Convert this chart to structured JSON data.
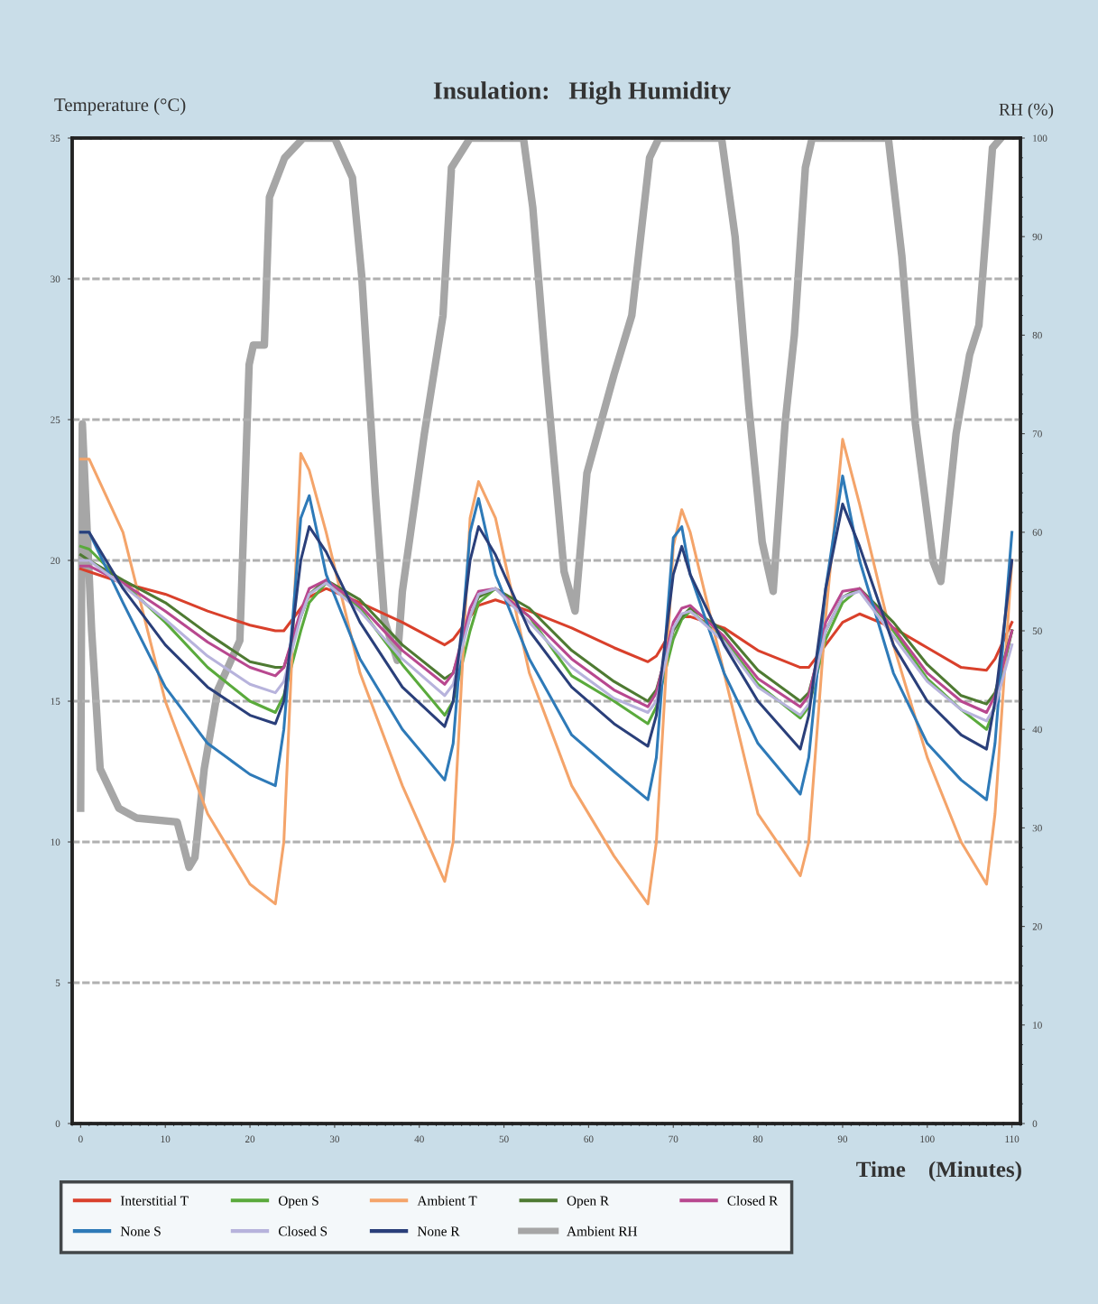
{
  "chart_data": {
    "type": "line",
    "title": "Insulation:   High Humidity",
    "xlabel": "Time    (Minutes)",
    "ylabel": "Temperature (°C)",
    "y2label": "RH (%)",
    "x": [
      0,
      1,
      5,
      10,
      15,
      20,
      23,
      24,
      26,
      27,
      29,
      33,
      38,
      43,
      44,
      46,
      47,
      49,
      53,
      58,
      63,
      67,
      68,
      70,
      71,
      72,
      76,
      80,
      85,
      86,
      88,
      90,
      92,
      96,
      100,
      104,
      107,
      108,
      110
    ],
    "series": [
      {
        "name": "Interstitial T",
        "color": "#d9402b",
        "values": [
          19.7,
          19.6,
          19.2,
          18.8,
          18.2,
          17.7,
          17.5,
          17.5,
          18.3,
          18.7,
          19,
          18.5,
          17.8,
          17.0,
          17.2,
          18,
          18.4,
          18.6,
          18.2,
          17.6,
          16.9,
          16.4,
          16.6,
          17.6,
          18,
          18,
          17.6,
          16.8,
          16.2,
          16.2,
          17,
          17.8,
          18.1,
          17.6,
          16.9,
          16.2,
          16.1,
          16.5,
          17.8
        ]
      },
      {
        "name": "Open S",
        "color": "#5aaa3c",
        "values": [
          20.5,
          20.4,
          19.2,
          17.8,
          16.2,
          15,
          14.6,
          15.2,
          17.5,
          18.5,
          19.2,
          18.3,
          16.3,
          14.5,
          15,
          17.5,
          18.5,
          19,
          18,
          15.9,
          15,
          14.2,
          14.8,
          17.2,
          17.9,
          18.2,
          17.2,
          15.6,
          14.4,
          14.8,
          17.2,
          18.5,
          19,
          17.5,
          15.8,
          14.7,
          14.0,
          14.8,
          17.5
        ]
      },
      {
        "name": "Ambient T",
        "color": "#f4a46a",
        "values": [
          23.6,
          23.6,
          21,
          15,
          11,
          8.5,
          7.8,
          10,
          23.8,
          23.2,
          21,
          16,
          12,
          8.6,
          10,
          21.5,
          22.8,
          21.5,
          16,
          12,
          9.5,
          7.8,
          10,
          20.5,
          21.8,
          21,
          16,
          11,
          8.8,
          10,
          18,
          24.3,
          22,
          17,
          13,
          10,
          8.5,
          11,
          20
        ]
      },
      {
        "name": "Open R",
        "color": "#4e7a32",
        "values": [
          20.2,
          20,
          19.3,
          18.5,
          17.4,
          16.4,
          16.2,
          16.2,
          18,
          18.8,
          19.3,
          18.6,
          17,
          15.8,
          16,
          18,
          18.7,
          19,
          18.3,
          16.8,
          15.7,
          15.0,
          15.4,
          17.5,
          18,
          18.3,
          17.5,
          16.1,
          15,
          15.3,
          17.5,
          18.7,
          19,
          17.8,
          16.3,
          15.2,
          14.9,
          15.3,
          17.5
        ]
      },
      {
        "name": "Closed R",
        "color": "#b8488f",
        "values": [
          19.8,
          19.8,
          19.2,
          18.2,
          17.1,
          16.2,
          15.9,
          16.2,
          18.2,
          19,
          19.3,
          18.4,
          16.8,
          15.6,
          16,
          18.3,
          18.9,
          19,
          18,
          16.5,
          15.4,
          14.8,
          15.3,
          17.8,
          18.3,
          18.4,
          17.3,
          15.8,
          14.8,
          15.2,
          17.8,
          18.9,
          19,
          17.6,
          16,
          15,
          14.6,
          15.2,
          17.5
        ]
      },
      {
        "name": "None S",
        "color": "#2e7ab8",
        "values": [
          21,
          21,
          18.5,
          15.5,
          13.5,
          12.4,
          12,
          14,
          21.5,
          22.3,
          19.5,
          16.5,
          14,
          12.2,
          13.5,
          21,
          22.2,
          19.5,
          16.5,
          13.8,
          12.5,
          11.5,
          13,
          20.8,
          21.2,
          19.5,
          16,
          13.5,
          11.7,
          13,
          19,
          23,
          20,
          16,
          13.5,
          12.2,
          11.5,
          13.5,
          21
        ]
      },
      {
        "name": "Closed S",
        "color": "#b7b3dc",
        "values": [
          20,
          20,
          19.1,
          17.9,
          16.6,
          15.6,
          15.3,
          15.7,
          18,
          18.8,
          19.2,
          18.2,
          16.5,
          15.2,
          15.6,
          18,
          18.8,
          19,
          17.8,
          16.2,
          15.1,
          14.6,
          15,
          17.6,
          18.1,
          18.2,
          17.1,
          15.5,
          14.5,
          14.9,
          17.5,
          18.7,
          18.9,
          17.3,
          15.7,
          14.7,
          14.3,
          14.8,
          17
        ]
      },
      {
        "name": "None R",
        "color": "#2a3f7a",
        "values": [
          21,
          21,
          19,
          17,
          15.5,
          14.5,
          14.2,
          15,
          20,
          21.2,
          20.3,
          17.8,
          15.5,
          14.1,
          15,
          20,
          21.2,
          20.2,
          17.5,
          15.5,
          14.2,
          13.4,
          14.5,
          19.5,
          20.5,
          19.5,
          17,
          15,
          13.3,
          14.5,
          19,
          22,
          20.5,
          17,
          15,
          13.8,
          13.3,
          15,
          20
        ]
      },
      {
        "name": "Ambient RH",
        "color": "#a6a6a6",
        "axis": "y2",
        "x": [
          0,
          0.2,
          1.3,
          2.3,
          4.5,
          6.6,
          11.4,
          11.9,
          12.8,
          13.5,
          14.6,
          16.2,
          18.8,
          19.9,
          20.4,
          21.7,
          22.3,
          24.1,
          26.3,
          30,
          32.1,
          33.2,
          34.8,
          35.9,
          37.4,
          38,
          40.6,
          42.8,
          43.8,
          46,
          52.3,
          53.4,
          55,
          57.1,
          58.4,
          59.8,
          63,
          65.1,
          67.2,
          68.3,
          75.7,
          77.3,
          78.9,
          80.5,
          81.8,
          83.2,
          84.3,
          85.6,
          86.4,
          95.4,
          97,
          98.6,
          100.7,
          101.6,
          103.4,
          105,
          106.1,
          107.7,
          108.7
        ],
        "values": [
          32,
          71,
          50,
          36,
          32,
          31,
          30.6,
          29,
          26,
          27,
          36,
          44,
          49,
          77,
          79,
          79,
          94,
          98,
          100,
          100,
          96,
          86,
          64,
          51,
          47,
          54,
          70,
          82,
          97,
          100,
          100,
          93,
          76,
          56,
          52,
          66,
          76,
          82,
          98,
          100,
          100,
          90,
          73,
          59,
          54,
          71,
          80,
          97,
          100,
          100,
          88,
          71,
          57,
          55,
          70,
          78,
          81,
          99,
          100
        ]
      }
    ],
    "xlim": [
      -1,
      111
    ],
    "xticks": [
      0,
      10,
      20,
      30,
      40,
      50,
      60,
      70,
      80,
      90,
      100,
      110
    ],
    "ylim": [
      0,
      35
    ],
    "yticks": [
      0,
      5,
      10,
      15,
      20,
      25,
      30,
      35
    ],
    "y2lim": [
      0,
      100
    ],
    "y2ticks": [
      0,
      10,
      20,
      30,
      40,
      50,
      60,
      70,
      80,
      90,
      100
    ],
    "grid": true,
    "legend": "bottom",
    "line_style": "solid"
  }
}
